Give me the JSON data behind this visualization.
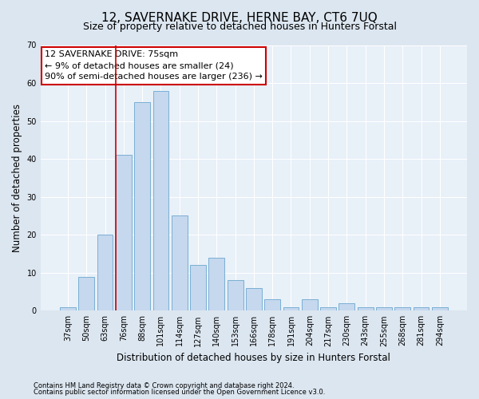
{
  "title": "12, SAVERNAKE DRIVE, HERNE BAY, CT6 7UQ",
  "subtitle": "Size of property relative to detached houses in Hunters Forstal",
  "xlabel": "Distribution of detached houses by size in Hunters Forstal",
  "ylabel": "Number of detached properties",
  "categories": [
    "37sqm",
    "50sqm",
    "63sqm",
    "76sqm",
    "88sqm",
    "101sqm",
    "114sqm",
    "127sqm",
    "140sqm",
    "153sqm",
    "166sqm",
    "178sqm",
    "191sqm",
    "204sqm",
    "217sqm",
    "230sqm",
    "243sqm",
    "255sqm",
    "268sqm",
    "281sqm",
    "294sqm"
  ],
  "values": [
    1,
    9,
    20,
    41,
    55,
    58,
    25,
    12,
    14,
    8,
    6,
    3,
    1,
    3,
    1,
    2,
    1,
    1,
    1,
    1,
    1
  ],
  "bar_color": "#c5d8ee",
  "bar_edge_color": "#7aafd4",
  "vline_x_index": 3,
  "vline_color": "#cc0000",
  "annotation_line1": "12 SAVERNAKE DRIVE: 75sqm",
  "annotation_line2": "← 9% of detached houses are smaller (24)",
  "annotation_line3": "90% of semi-detached houses are larger (236) →",
  "annotation_box_color": "#ffffff",
  "annotation_box_edge": "#cc0000",
  "ylim": [
    0,
    70
  ],
  "yticks": [
    0,
    10,
    20,
    30,
    40,
    50,
    60,
    70
  ],
  "bg_color": "#dce6f0",
  "plot_bg_color": "#e8f0f8",
  "footer_line1": "Contains HM Land Registry data © Crown copyright and database right 2024.",
  "footer_line2": "Contains public sector information licensed under the Open Government Licence v3.0.",
  "title_fontsize": 11,
  "subtitle_fontsize": 9,
  "annotation_fontsize": 8,
  "xlabel_fontsize": 8.5,
  "ylabel_fontsize": 8.5
}
